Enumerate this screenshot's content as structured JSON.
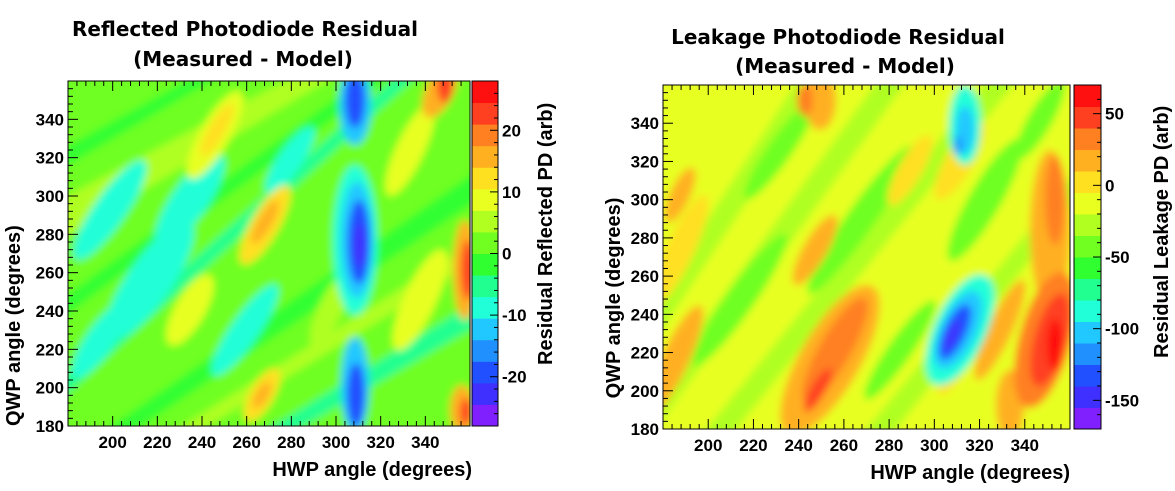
{
  "chart_data": [
    {
      "type": "heatmap",
      "title": "Reflected Photodiode Residual",
      "subtitle": "(Measured - Model)",
      "xlabel": "HWP angle  (degrees)",
      "ylabel": "QWP angle  (degrees)",
      "zlabel": "Residual Reflected PD (arb)",
      "xlim": [
        180,
        360
      ],
      "ylim": [
        180,
        360
      ],
      "zlim": [
        -28,
        28
      ],
      "x_ticks": [
        200,
        220,
        240,
        260,
        280,
        300,
        320,
        340
      ],
      "y_ticks": [
        180,
        200,
        220,
        240,
        260,
        280,
        300,
        320,
        340
      ],
      "z_ticks": [
        -20,
        -10,
        0,
        10,
        20
      ],
      "colorscale": [
        "#8020ff",
        "#4030ff",
        "#2050ff",
        "#2090ff",
        "#20c8ff",
        "#20ffd8",
        "#20ff90",
        "#30ff30",
        "#70ff20",
        "#b0ff20",
        "#e8ff20",
        "#ffe020",
        "#ffb020",
        "#ff8020",
        "#ff4020",
        "#ff1010"
      ],
      "features": [
        {
          "type": "trough",
          "x": 310,
          "y": 275,
          "value": -26
        },
        {
          "type": "trough",
          "x": 308,
          "y": 200,
          "value": -20
        },
        {
          "type": "trough",
          "x": 310,
          "y": 355,
          "value": -22
        },
        {
          "type": "peak",
          "x": 355,
          "y": 275,
          "value": 24
        },
        {
          "type": "peak",
          "x": 355,
          "y": 185,
          "value": 24
        },
        {
          "type": "peak",
          "x": 265,
          "y": 205,
          "value": 18
        },
        {
          "type": "peak",
          "x": 265,
          "y": 285,
          "value": 18
        },
        {
          "type": "peak",
          "x": 345,
          "y": 355,
          "value": 20
        }
      ]
    },
    {
      "type": "heatmap",
      "title": "Leakage Photodiode Residual",
      "subtitle": "(Measured - Model)",
      "xlabel": "HWP angle  (degrees)",
      "ylabel": "QWP angle  (degrees)",
      "zlabel": "Residual Leakage PD (arb)",
      "xlim": [
        180,
        360
      ],
      "ylim": [
        180,
        360
      ],
      "zlim": [
        -170,
        70
      ],
      "x_ticks": [
        200,
        220,
        240,
        260,
        280,
        300,
        320,
        340
      ],
      "y_ticks": [
        180,
        200,
        220,
        240,
        260,
        280,
        300,
        320,
        340
      ],
      "z_ticks": [
        -150,
        -100,
        -50,
        0,
        50
      ],
      "colorscale": [
        "#8020ff",
        "#4030ff",
        "#2050ff",
        "#2090ff",
        "#20c8ff",
        "#20ffd8",
        "#20ff90",
        "#30ff30",
        "#70ff20",
        "#b0ff20",
        "#e8ff20",
        "#ffe020",
        "#ffb020",
        "#ff8020",
        "#ff4020",
        "#ff1010"
      ],
      "features": [
        {
          "type": "trough",
          "x": 307,
          "y": 227,
          "value": -160
        },
        {
          "type": "trough",
          "x": 310,
          "y": 325,
          "value": -100
        },
        {
          "type": "peak",
          "x": 350,
          "y": 230,
          "value": 65
        },
        {
          "type": "peak",
          "x": 260,
          "y": 230,
          "value": 50
        },
        {
          "type": "peak",
          "x": 350,
          "y": 300,
          "value": 45
        },
        {
          "type": "peak",
          "x": 195,
          "y": 270,
          "value": 40
        }
      ]
    }
  ]
}
